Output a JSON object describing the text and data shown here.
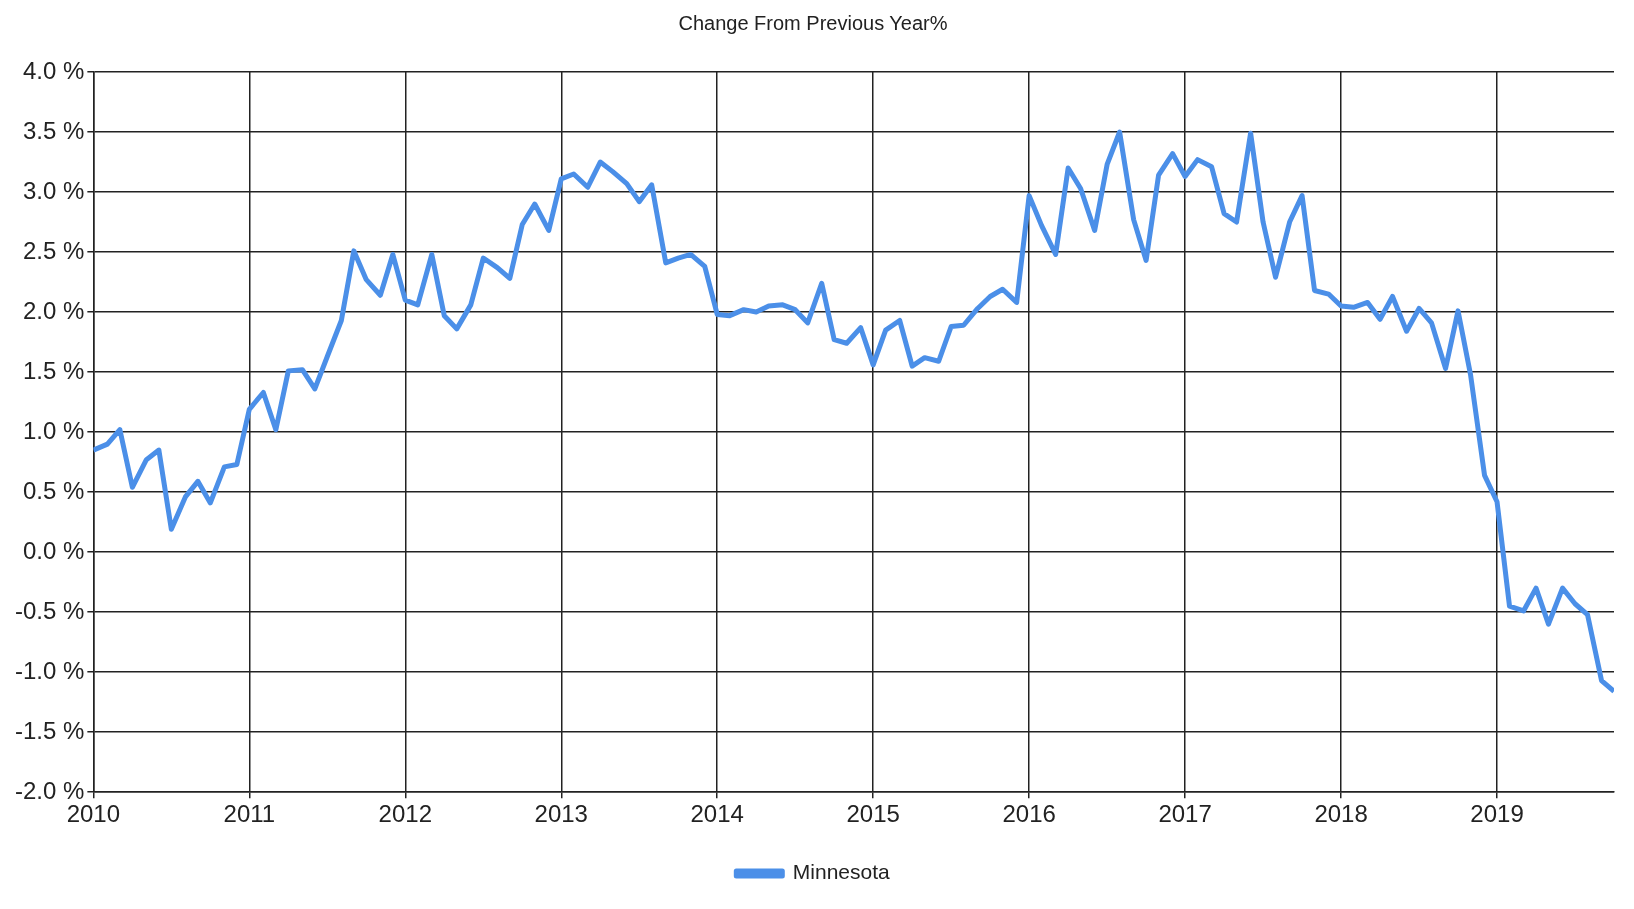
{
  "chart_data": {
    "type": "line",
    "title": "Change From Previous Year%",
    "x": [
      2010.0,
      2010.09,
      2010.17,
      2010.25,
      2010.34,
      2010.42,
      2010.5,
      2010.59,
      2010.67,
      2010.75,
      2010.84,
      2010.92,
      2011.0,
      2011.09,
      2011.17,
      2011.25,
      2011.34,
      2011.42,
      2011.5,
      2011.59,
      2011.67,
      2011.75,
      2011.84,
      2011.92,
      2012.0,
      2012.08,
      2012.17,
      2012.25,
      2012.33,
      2012.42,
      2012.5,
      2012.59,
      2012.67,
      2012.75,
      2012.83,
      2012.92,
      2013.0,
      2013.08,
      2013.17,
      2013.25,
      2013.33,
      2013.42,
      2013.5,
      2013.58,
      2013.67,
      2013.75,
      2013.83,
      2013.92,
      2014.0,
      2014.08,
      2014.17,
      2014.25,
      2014.33,
      2014.42,
      2014.5,
      2014.58,
      2014.67,
      2014.75,
      2014.83,
      2014.92,
      2015.0,
      2015.08,
      2015.17,
      2015.25,
      2015.33,
      2015.42,
      2015.5,
      2015.58,
      2015.67,
      2015.75,
      2015.83,
      2015.92,
      2016.0,
      2016.08,
      2016.17,
      2016.25,
      2016.33,
      2016.42,
      2016.5,
      2016.58,
      2016.67,
      2016.75,
      2016.83,
      2016.92,
      2017.0,
      2017.08,
      2017.17,
      2017.25,
      2017.33,
      2017.42,
      2017.5,
      2017.58,
      2017.67,
      2017.75,
      2017.83,
      2017.92,
      2018.0,
      2018.08,
      2018.17,
      2018.25,
      2018.33,
      2018.42,
      2018.5,
      2018.58,
      2018.67,
      2018.75,
      2018.83,
      2018.92,
      2019.0,
      2019.08,
      2019.17,
      2019.25,
      2019.33,
      2019.42,
      2019.5,
      2019.58,
      2019.67,
      2019.75
    ],
    "series": [
      {
        "name": "Minnesota",
        "color": "#4b8fe8",
        "values": [
          0.85,
          0.9,
          1.02,
          0.54,
          0.77,
          0.85,
          0.19,
          0.46,
          0.59,
          0.41,
          0.71,
          0.73,
          1.19,
          1.33,
          1.02,
          1.51,
          1.52,
          1.36,
          1.63,
          1.93,
          2.51,
          2.27,
          2.14,
          2.48,
          2.1,
          2.06,
          2.48,
          1.97,
          1.86,
          2.06,
          2.45,
          2.37,
          2.28,
          2.73,
          2.9,
          2.68,
          3.11,
          3.15,
          3.04,
          3.25,
          3.17,
          3.07,
          2.92,
          3.06,
          2.41,
          2.45,
          2.48,
          2.38,
          1.98,
          1.97,
          2.02,
          2.0,
          2.05,
          2.06,
          2.02,
          1.91,
          2.24,
          1.77,
          1.74,
          1.87,
          1.56,
          1.85,
          1.93,
          1.55,
          1.62,
          1.59,
          1.88,
          1.89,
          2.03,
          2.13,
          2.19,
          2.08,
          2.97,
          2.72,
          2.48,
          3.2,
          3.03,
          2.68,
          3.23,
          3.5,
          2.77,
          2.43,
          3.14,
          3.32,
          3.13,
          3.27,
          3.21,
          2.82,
          2.75,
          3.49,
          2.75,
          2.29,
          2.75,
          2.97,
          2.18,
          2.15,
          2.05,
          2.04,
          2.08,
          1.94,
          2.13,
          1.84,
          2.03,
          1.91,
          1.53,
          2.01,
          1.48,
          0.64,
          0.42,
          -0.45,
          -0.49,
          -0.3,
          -0.6,
          -0.3,
          -0.43,
          -0.52,
          -1.07,
          -1.16
        ]
      }
    ],
    "xlim": [
      2010,
      2019.75
    ],
    "xticks": [
      2010,
      2011,
      2012,
      2013,
      2014,
      2015,
      2016,
      2017,
      2018,
      2019
    ],
    "ylim": [
      -2,
      4
    ],
    "yticks": [
      {
        "value": -2,
        "label": "-2.0 %"
      },
      {
        "value": -1.5,
        "label": "-1.5 %"
      },
      {
        "value": -1,
        "label": "-1.0 %"
      },
      {
        "value": -0.5,
        "label": "-0.5 %"
      },
      {
        "value": 0,
        "label": "0.0 %"
      },
      {
        "value": 0.5,
        "label": "0.5 %"
      },
      {
        "value": 1,
        "label": "1.0 %"
      },
      {
        "value": 1.5,
        "label": "1.5 %"
      },
      {
        "value": 2,
        "label": "2.0 %"
      },
      {
        "value": 2.5,
        "label": "2.5 %"
      },
      {
        "value": 3,
        "label": "3.0 %"
      },
      {
        "value": 3.5,
        "label": "3.5 %"
      },
      {
        "value": 4,
        "label": "4.0 %"
      }
    ],
    "grid": true,
    "legend": "bottom",
    "marker": "none",
    "line_style": "solid"
  }
}
